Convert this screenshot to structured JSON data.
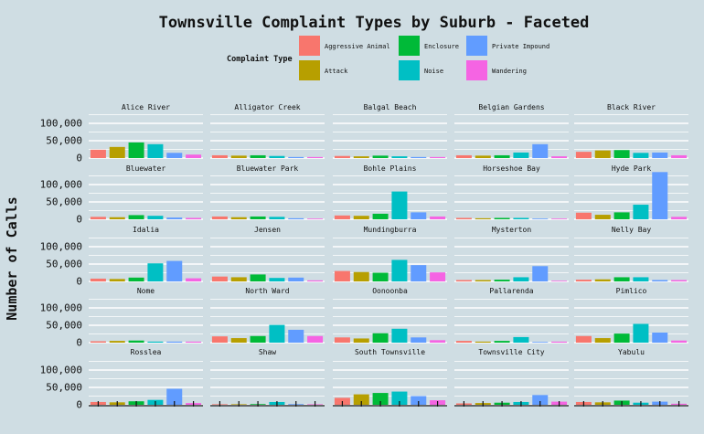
{
  "chart_data": {
    "type": "bar",
    "title": "Townsville Complaint Types by Suburb - Faceted",
    "xlabel": "",
    "ylabel": "Number of Calls",
    "ylim": [
      0,
      150000
    ],
    "y_ticks": [
      0,
      50000,
      100000
    ],
    "y_tick_labels": [
      "0",
      "50,000",
      "100,000"
    ],
    "grid": true,
    "legend_position": "top",
    "legend_title": "Complaint Type",
    "categories": [
      "Aggressive Animal",
      "Attack",
      "Enclosure",
      "Noise",
      "Private Impound",
      "Wandering"
    ],
    "colors": [
      "#f8766d",
      "#b79f00",
      "#00ba38",
      "#00bfc4",
      "#619cff",
      "#f564e3"
    ],
    "facets": [
      {
        "name": "Alice River",
        "values": [
          24000,
          32000,
          45000,
          40000,
          15000,
          10000
        ]
      },
      {
        "name": "Alligator Creek",
        "values": [
          8000,
          7000,
          8000,
          6000,
          3000,
          3000
        ]
      },
      {
        "name": "Balgal Beach",
        "values": [
          6000,
          5000,
          7000,
          5000,
          3000,
          3000
        ]
      },
      {
        "name": "Belgian Gardens",
        "values": [
          8000,
          7000,
          8000,
          16000,
          40000,
          5000
        ]
      },
      {
        "name": "Black River",
        "values": [
          18000,
          22000,
          23000,
          15000,
          16000,
          8000
        ]
      },
      {
        "name": "Bluewater",
        "values": [
          7000,
          6000,
          12000,
          10000,
          5000,
          4000
        ]
      },
      {
        "name": "Bluewater Park",
        "values": [
          8000,
          6000,
          8000,
          7000,
          3000,
          2000
        ]
      },
      {
        "name": "Bohle Plains",
        "values": [
          11000,
          10000,
          16000,
          80000,
          20000,
          8000
        ]
      },
      {
        "name": "Horseshoe Bay",
        "values": [
          4000,
          3000,
          4000,
          4000,
          2000,
          2000
        ]
      },
      {
        "name": "Hyde Park",
        "values": [
          19000,
          13000,
          20000,
          42000,
          136000,
          7000
        ]
      },
      {
        "name": "Idalia",
        "values": [
          8000,
          7000,
          11000,
          52000,
          59000,
          9000
        ]
      },
      {
        "name": "Jensen",
        "values": [
          14000,
          12000,
          20000,
          10000,
          11000,
          3000
        ]
      },
      {
        "name": "Mundingburra",
        "values": [
          30000,
          27000,
          25000,
          62000,
          47000,
          26000
        ]
      },
      {
        "name": "Mysterton",
        "values": [
          4000,
          4000,
          5000,
          12000,
          44000,
          2000
        ]
      },
      {
        "name": "Nelly Bay",
        "values": [
          5000,
          6000,
          12000,
          12000,
          4000,
          4000
        ]
      },
      {
        "name": "Nome",
        "values": [
          4000,
          5000,
          6000,
          3000,
          3000,
          3000
        ]
      },
      {
        "name": "North Ward",
        "values": [
          18000,
          13000,
          19000,
          51000,
          37000,
          19000
        ]
      },
      {
        "name": "Oonoonba",
        "values": [
          15000,
          12000,
          27000,
          40000,
          15000,
          7000
        ]
      },
      {
        "name": "Pallarenda",
        "values": [
          5000,
          3000,
          5000,
          16000,
          2000,
          3000
        ]
      },
      {
        "name": "Pimlico",
        "values": [
          19000,
          13000,
          26000,
          54000,
          29000,
          6000
        ]
      },
      {
        "name": "Rosslea",
        "values": [
          8000,
          7000,
          10000,
          14000,
          46000,
          5000
        ]
      },
      {
        "name": "Shaw",
        "values": [
          1000,
          1000,
          2000,
          8000,
          2000,
          1000
        ]
      },
      {
        "name": "South Townsville",
        "values": [
          20000,
          30000,
          34000,
          38000,
          25000,
          13000
        ]
      },
      {
        "name": "Townsville City",
        "values": [
          4000,
          5000,
          6000,
          8000,
          28000,
          9000
        ]
      },
      {
        "name": "Yabulu",
        "values": [
          8000,
          7000,
          12000,
          6000,
          9000,
          3000
        ]
      }
    ]
  }
}
